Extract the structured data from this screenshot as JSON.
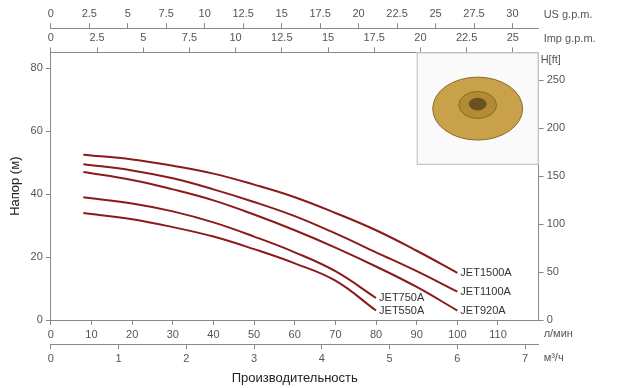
{
  "chart_data": {
    "type": "line",
    "x_label": "Производительность",
    "y_label": "Напор (м)",
    "x_unit_label": "л/мин",
    "xlim": [
      0,
      120
    ],
    "xticks": [
      0,
      10,
      20,
      30,
      40,
      50,
      60,
      70,
      80,
      90,
      100,
      110
    ],
    "ylim": [
      0,
      85
    ],
    "yticks": [
      0,
      20,
      40,
      60,
      80
    ],
    "y2_label": "H[ft]",
    "y2lim": [
      0,
      279
    ],
    "y2ticks": [
      0,
      50,
      100,
      150,
      200,
      250
    ],
    "x2_axes": [
      {
        "label": "м³/ч",
        "position": "bottom",
        "xlim": [
          0,
          7.2
        ],
        "xticks": [
          0,
          1,
          2,
          3,
          4,
          5,
          6,
          7
        ]
      },
      {
        "label": "US g.p.m.",
        "position": "top",
        "xlim": [
          0,
          31.7
        ],
        "xticks": [
          0,
          2.5,
          5,
          7.5,
          10,
          12.5,
          15,
          17.5,
          20,
          22.5,
          25,
          27.5,
          30
        ]
      },
      {
        "label": "Imp g.p.m.",
        "position": "top",
        "xlim": [
          0,
          26.4
        ],
        "xticks": [
          0,
          2.5,
          5,
          7.5,
          10,
          12.5,
          15,
          17.5,
          20,
          22.5,
          25
        ]
      }
    ],
    "grid": false,
    "x": [
      8,
      20,
      30,
      40,
      50,
      60,
      70,
      80,
      90,
      100
    ],
    "series": [
      {
        "name": "JET1500A",
        "color": "#8b1a1a",
        "values": [
          52.5,
          51,
          49,
          46.5,
          43,
          39,
          34,
          28.5,
          22,
          15
        ]
      },
      {
        "name": "JET1100A",
        "color": "#8b1a1a",
        "values": [
          49.5,
          47.5,
          45,
          41.5,
          37.5,
          33,
          27.5,
          21.5,
          15.5,
          9
        ]
      },
      {
        "name": "JET920A",
        "color": "#8b1a1a",
        "values": [
          47,
          44.5,
          41.5,
          38,
          33.5,
          28.5,
          23,
          17,
          10.5,
          3
        ]
      },
      {
        "name": "JET750A",
        "color": "#8b1a1a",
        "values": [
          39,
          37,
          34.5,
          31,
          26.5,
          21.5,
          15.5,
          7,
          null,
          null
        ]
      },
      {
        "name": "JET550A",
        "color": "#8b1a1a",
        "values": [
          34,
          32,
          29.5,
          26.5,
          22.5,
          18,
          12.5,
          3,
          null,
          null
        ]
      }
    ]
  }
}
